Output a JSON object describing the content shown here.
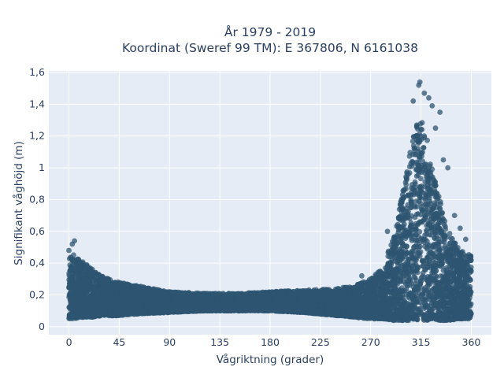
{
  "chart_data": {
    "type": "scatter",
    "title_lines": [
      "År 1979 - 2019",
      "Koordinat (Sweref 99 TM): E 367806, N 6161038"
    ],
    "xlabel": "Vågriktning (grader)",
    "ylabel": "Signifikant våghöjd (m)",
    "xlim": [
      -18,
      378
    ],
    "ylim": [
      -0.05,
      1.61
    ],
    "x_ticks": [
      0,
      45,
      90,
      135,
      180,
      225,
      270,
      315,
      360
    ],
    "x_tick_labels": [
      "0",
      "45",
      "90",
      "135",
      "180",
      "225",
      "270",
      "315",
      "360"
    ],
    "y_ticks": [
      0,
      0.2,
      0.4,
      0.6,
      0.8,
      1.0,
      1.2,
      1.4,
      1.6
    ],
    "y_tick_labels": [
      "0",
      "0,2",
      "0,4",
      "0,6",
      "0,8",
      "1",
      "1,2",
      "1,4",
      "1,6"
    ],
    "grid": true,
    "marker_color": "#2e5470",
    "plot_bg": "#e5ecf6",
    "envelope": {
      "x": [
        0,
        5,
        10,
        20,
        30,
        45,
        60,
        90,
        120,
        150,
        180,
        210,
        240,
        255,
        270,
        280,
        290,
        300,
        305,
        310,
        315,
        320,
        325,
        330,
        340,
        350,
        360
      ],
      "lower": [
        0.05,
        0.05,
        0.06,
        0.06,
        0.07,
        0.07,
        0.08,
        0.09,
        0.1,
        0.1,
        0.1,
        0.09,
        0.07,
        0.06,
        0.05,
        0.05,
        0.04,
        0.04,
        0.04,
        0.04,
        0.04,
        0.04,
        0.04,
        0.04,
        0.04,
        0.05,
        0.05
      ],
      "upper": [
        0.44,
        0.46,
        0.42,
        0.37,
        0.32,
        0.28,
        0.26,
        0.22,
        0.21,
        0.21,
        0.22,
        0.23,
        0.24,
        0.26,
        0.3,
        0.37,
        0.55,
        0.9,
        1.1,
        1.25,
        1.35,
        1.2,
        1.0,
        0.85,
        0.6,
        0.48,
        0.45
      ]
    },
    "outliers": [
      {
        "x": 5,
        "y": 0.54
      },
      {
        "x": 3,
        "y": 0.52
      },
      {
        "x": 0,
        "y": 0.48
      },
      {
        "x": 308,
        "y": 1.42
      },
      {
        "x": 313,
        "y": 1.52
      },
      {
        "x": 314,
        "y": 1.54
      },
      {
        "x": 318,
        "y": 1.47
      },
      {
        "x": 322,
        "y": 1.44
      },
      {
        "x": 325,
        "y": 1.39
      },
      {
        "x": 332,
        "y": 1.35
      },
      {
        "x": 328,
        "y": 1.25
      },
      {
        "x": 335,
        "y": 1.05
      },
      {
        "x": 339,
        "y": 1.0
      },
      {
        "x": 345,
        "y": 0.7
      },
      {
        "x": 350,
        "y": 0.62
      },
      {
        "x": 355,
        "y": 0.55
      },
      {
        "x": 285,
        "y": 0.6
      },
      {
        "x": 262,
        "y": 0.32
      }
    ]
  }
}
